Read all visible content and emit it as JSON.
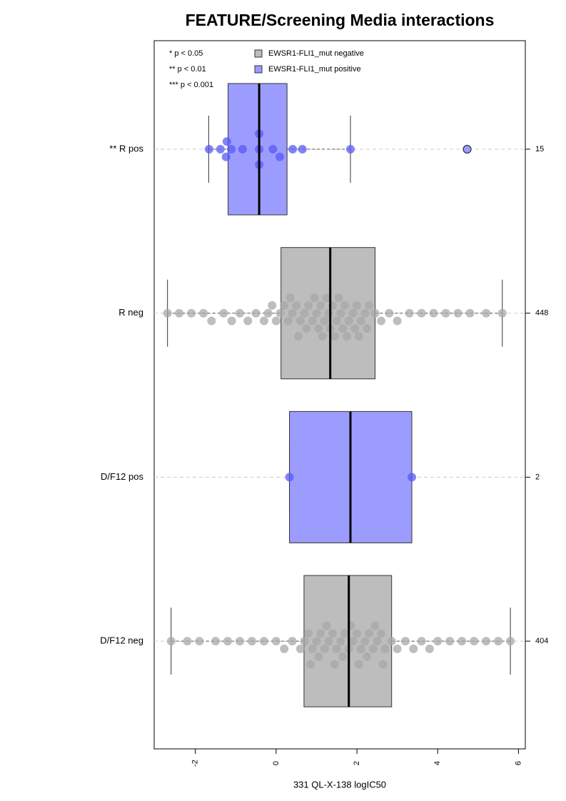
{
  "chart_data": {
    "type": "boxplot",
    "title": "FEATURE/Screening Media interactions",
    "x_label": "331 QL-X-138 logIC50",
    "xlim": [
      -3.02,
      6.17
    ],
    "xticks": [
      -2,
      0,
      2,
      4,
      6
    ],
    "significance_notes": [
      "* p < 0.05",
      "** p < 0.01",
      "*** p < 0.001"
    ],
    "legend": [
      {
        "name": "EWSR1-FLI1_mut negative",
        "color": "#bdbdbd"
      },
      {
        "name": "EWSR1-FLI1_mut positive",
        "color": "#9c9cff"
      }
    ],
    "groups": [
      {
        "name": "** R pos",
        "n": 15,
        "color": "#9c9cff",
        "point_color": "#5a5af5",
        "whisker_low": -1.67,
        "q1": -1.19,
        "median": -0.42,
        "q3": 0.27,
        "whisker_high": 1.84,
        "outliers": [
          4.73
        ],
        "points": [
          -1.66,
          -1.38,
          -1.24,
          -1.22,
          -1.11,
          -0.83,
          -0.42,
          -0.42,
          -0.42,
          -0.08,
          0.09,
          0.41,
          0.65,
          1.84,
          4.73
        ]
      },
      {
        "name": "R neg",
        "n": 448,
        "color": "#bdbdbd",
        "point_color": "#a8a8a8",
        "whisker_low": -2.69,
        "q1": 0.12,
        "median": 1.34,
        "q3": 2.45,
        "whisker_high": 5.6,
        "outliers": [],
        "points": [
          -2.69,
          -2.4,
          -2.1,
          -1.8,
          -1.6,
          -1.3,
          -1.1,
          -0.9,
          -0.7,
          -0.5,
          -0.3,
          -0.2,
          -0.1,
          0.0,
          0.1,
          0.2,
          0.3,
          0.4,
          0.5,
          0.6,
          0.7,
          0.8,
          0.9,
          1.0,
          1.1,
          1.2,
          1.3,
          1.34,
          1.4,
          1.5,
          1.6,
          1.7,
          1.8,
          1.9,
          2.0,
          2.1,
          2.2,
          2.3,
          2.45,
          2.6,
          2.8,
          3.0,
          3.3,
          3.6,
          3.9,
          4.2,
          4.5,
          4.8,
          5.2,
          5.6,
          0.35,
          0.55,
          0.75,
          0.95,
          1.05,
          1.15,
          1.25,
          1.45,
          1.55,
          1.65,
          1.75,
          1.95,
          2.05,
          2.25
        ]
      },
      {
        "name": "D/F12 pos",
        "n": 2,
        "color": "#9c9cff",
        "point_color": "#5a5af5",
        "whisker_low": 0.33,
        "q1": 0.33,
        "median": 1.84,
        "q3": 3.36,
        "whisker_high": 3.36,
        "outliers": [],
        "points": [
          0.33,
          3.36
        ]
      },
      {
        "name": "D/F12 neg",
        "n": 404,
        "color": "#bdbdbd",
        "point_color": "#a8a8a8",
        "whisker_low": -2.6,
        "q1": 0.69,
        "median": 1.8,
        "q3": 2.86,
        "whisker_high": 5.8,
        "outliers": [],
        "points": [
          -2.6,
          -2.2,
          -1.9,
          -1.5,
          -1.2,
          -0.9,
          -0.6,
          -0.3,
          0.0,
          0.2,
          0.4,
          0.6,
          0.7,
          0.8,
          0.9,
          1.0,
          1.1,
          1.2,
          1.3,
          1.4,
          1.5,
          1.6,
          1.7,
          1.8,
          1.9,
          2.0,
          2.1,
          2.2,
          2.3,
          2.4,
          2.5,
          2.6,
          2.7,
          2.86,
          3.0,
          3.2,
          3.4,
          3.6,
          3.8,
          4.0,
          4.3,
          4.6,
          4.9,
          5.2,
          5.5,
          5.8,
          0.85,
          1.05,
          1.25,
          1.45,
          1.65,
          1.85,
          2.05,
          2.25,
          2.45,
          2.65
        ]
      }
    ]
  }
}
